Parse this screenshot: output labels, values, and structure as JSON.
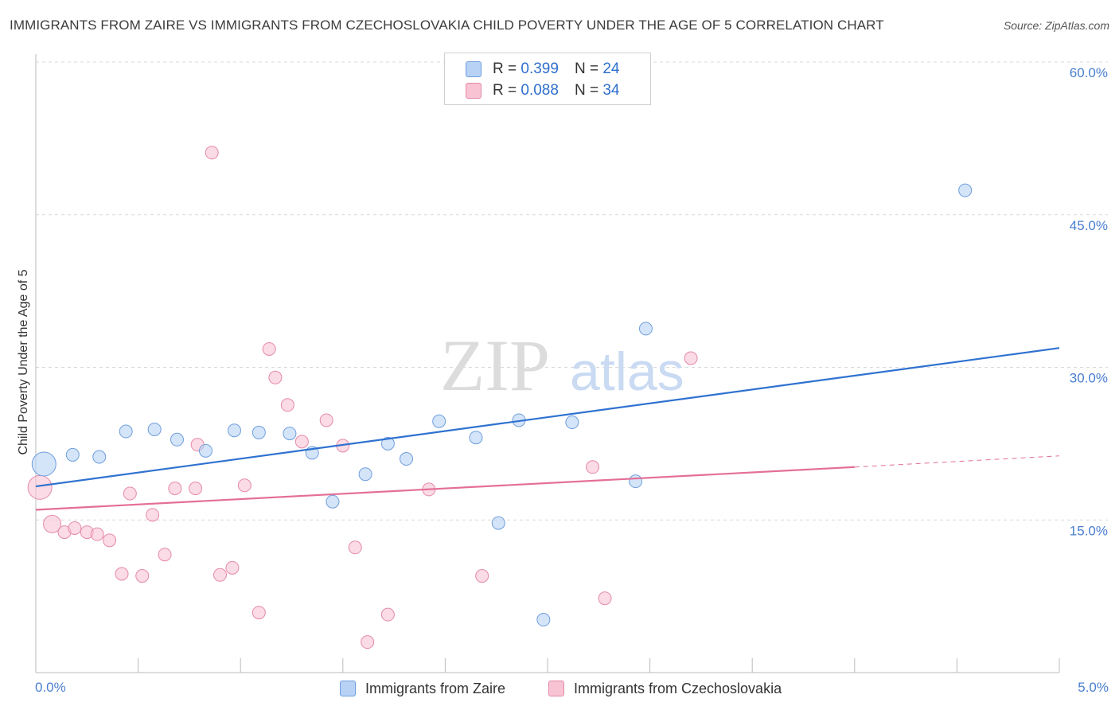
{
  "title": "IMMIGRANTS FROM ZAIRE VS IMMIGRANTS FROM CZECHOSLOVAKIA CHILD POVERTY UNDER THE AGE OF 5 CORRELATION CHART",
  "source": "Source: ZipAtlas.com",
  "colors": {
    "blue_fill": "#b8d2f5",
    "blue_stroke": "#6f9fdc",
    "blue_line": "#2f72d0",
    "pink_fill": "#f8c3d3",
    "pink_stroke": "#e58aa8",
    "pink_line": "#e46e98",
    "grid": "#d9d9d9",
    "axis_text": "#4a7fd0"
  },
  "legend": {
    "rows": [
      {
        "r_label": "R =",
        "r_value": "0.399",
        "n_label": "N =",
        "n_value": "24"
      },
      {
        "r_label": "R =",
        "r_value": "0.088",
        "n_label": "N =",
        "n_value": "34"
      }
    ]
  },
  "bottom_legend": {
    "zaire": "Immigrants from Zaire",
    "czech": "Immigrants from Czechoslovakia"
  },
  "watermark": {
    "zip": "ZIP",
    "atlas": "atlas"
  },
  "chart_data": {
    "type": "scatter",
    "title": "IMMIGRANTS FROM ZAIRE VS IMMIGRANTS FROM CZECHOSLOVAKIA CHILD POVERTY UNDER THE AGE OF 5 CORRELATION CHART",
    "xlabel": "",
    "ylabel": "Child Poverty Under the Age of 5",
    "xlim": [
      0,
      5.0
    ],
    "ylim": [
      0,
      60.0
    ],
    "x_tick_labels": [
      "0.0%",
      "5.0%"
    ],
    "y_ticks": [
      15,
      30,
      45,
      60
    ],
    "y_tick_labels": [
      "15.0%",
      "30.0%",
      "45.0%",
      "60.0%"
    ],
    "series": [
      {
        "name": "Immigrants from Zaire",
        "R": 0.399,
        "N": 24,
        "trend": {
          "x": [
            0,
            5.0
          ],
          "y": [
            18.3,
            31.9
          ]
        },
        "points": [
          {
            "x": 0.04,
            "y": 20.5,
            "big": true
          },
          {
            "x": 0.18,
            "y": 21.4
          },
          {
            "x": 0.31,
            "y": 21.2
          },
          {
            "x": 0.44,
            "y": 23.7
          },
          {
            "x": 0.58,
            "y": 23.9
          },
          {
            "x": 0.69,
            "y": 22.9
          },
          {
            "x": 0.83,
            "y": 21.8
          },
          {
            "x": 0.97,
            "y": 23.8
          },
          {
            "x": 1.09,
            "y": 23.6
          },
          {
            "x": 1.24,
            "y": 23.5
          },
          {
            "x": 1.35,
            "y": 21.6
          },
          {
            "x": 1.45,
            "y": 16.8
          },
          {
            "x": 1.61,
            "y": 19.5
          },
          {
            "x": 1.72,
            "y": 22.5
          },
          {
            "x": 1.81,
            "y": 21.0
          },
          {
            "x": 1.97,
            "y": 24.7
          },
          {
            "x": 2.15,
            "y": 23.1
          },
          {
            "x": 2.26,
            "y": 14.7
          },
          {
            "x": 2.36,
            "y": 24.8
          },
          {
            "x": 2.48,
            "y": 5.2
          },
          {
            "x": 2.62,
            "y": 24.6
          },
          {
            "x": 2.93,
            "y": 18.8
          },
          {
            "x": 2.98,
            "y": 33.8
          },
          {
            "x": 4.54,
            "y": 47.4
          }
        ]
      },
      {
        "name": "Immigrants from Czechoslovakia",
        "R": 0.088,
        "N": 34,
        "trend": {
          "x": [
            0,
            4.0
          ],
          "y": [
            16.0,
            20.2
          ]
        },
        "trend_dashed": {
          "x": [
            4.0,
            5.0
          ],
          "y": [
            20.2,
            21.3
          ]
        },
        "points": [
          {
            "x": 0.02,
            "y": 18.2,
            "big": true
          },
          {
            "x": 0.08,
            "y": 14.6,
            "medium": true
          },
          {
            "x": 0.14,
            "y": 13.8
          },
          {
            "x": 0.19,
            "y": 14.2
          },
          {
            "x": 0.25,
            "y": 13.8
          },
          {
            "x": 0.3,
            "y": 13.6
          },
          {
            "x": 0.36,
            "y": 13.0
          },
          {
            "x": 0.42,
            "y": 9.7
          },
          {
            "x": 0.46,
            "y": 17.6
          },
          {
            "x": 0.52,
            "y": 9.5
          },
          {
            "x": 0.57,
            "y": 15.5
          },
          {
            "x": 0.63,
            "y": 11.6
          },
          {
            "x": 0.68,
            "y": 18.1
          },
          {
            "x": 0.78,
            "y": 18.1
          },
          {
            "x": 0.79,
            "y": 22.4
          },
          {
            "x": 0.86,
            "y": 51.1
          },
          {
            "x": 0.9,
            "y": 9.6
          },
          {
            "x": 0.96,
            "y": 10.3
          },
          {
            "x": 1.02,
            "y": 18.4
          },
          {
            "x": 1.09,
            "y": 5.9
          },
          {
            "x": 1.14,
            "y": 31.8
          },
          {
            "x": 1.17,
            "y": 29.0
          },
          {
            "x": 1.23,
            "y": 26.3
          },
          {
            "x": 1.3,
            "y": 22.7
          },
          {
            "x": 1.42,
            "y": 24.8
          },
          {
            "x": 1.5,
            "y": 22.3
          },
          {
            "x": 1.56,
            "y": 12.3
          },
          {
            "x": 1.62,
            "y": 3.0
          },
          {
            "x": 1.72,
            "y": 5.7
          },
          {
            "x": 1.92,
            "y": 18.0
          },
          {
            "x": 2.18,
            "y": 9.5
          },
          {
            "x": 2.72,
            "y": 20.2
          },
          {
            "x": 2.78,
            "y": 7.3
          },
          {
            "x": 3.2,
            "y": 30.9
          }
        ]
      }
    ]
  }
}
